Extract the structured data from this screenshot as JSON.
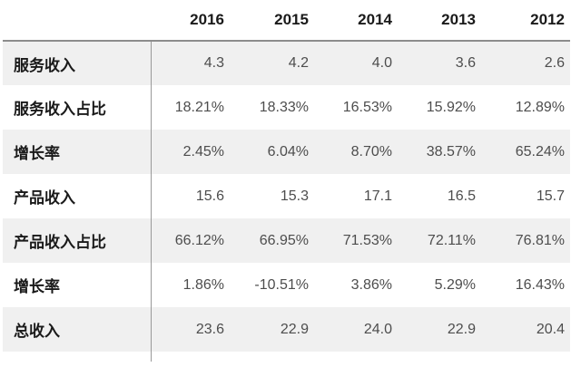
{
  "chart_data": {
    "type": "table",
    "title": "",
    "columns": [
      "2016",
      "2015",
      "2014",
      "2013",
      "2012"
    ],
    "rows": [
      {
        "label": "服务收入",
        "values": [
          "4.3",
          "4.2",
          "4.0",
          "3.6",
          "2.6"
        ]
      },
      {
        "label": "服务收入占比",
        "values": [
          "18.21%",
          "18.33%",
          "16.53%",
          "15.92%",
          "12.89%"
        ]
      },
      {
        "label": "增长率",
        "values": [
          "2.45%",
          "6.04%",
          "8.70%",
          "38.57%",
          "65.24%"
        ]
      },
      {
        "label": "产品收入",
        "values": [
          "15.6",
          "15.3",
          "17.1",
          "16.5",
          "15.7"
        ]
      },
      {
        "label": "产品收入占比",
        "values": [
          "66.12%",
          "66.95%",
          "71.53%",
          "72.11%",
          "76.81%"
        ]
      },
      {
        "label": "增长率",
        "values": [
          "1.86%",
          "-10.51%",
          "3.86%",
          "5.29%",
          "16.43%"
        ]
      },
      {
        "label": "总收入",
        "values": [
          "23.6",
          "22.9",
          "24.0",
          "22.9",
          "20.4"
        ]
      }
    ],
    "layout": {
      "value_alignment": "right",
      "striped_rows": "odd rows (1st, 3rd, 5th, 7th)",
      "grid": "horizontal rule under header, vertical divider after label column"
    }
  },
  "colors": {
    "row_stripe_bg": "#f0f0f0",
    "header_rule": "#8c8c8c",
    "column_divider": "#999999",
    "label_text": "#1a1a1a",
    "value_text": "#4d4d4d",
    "background": "#ffffff"
  }
}
